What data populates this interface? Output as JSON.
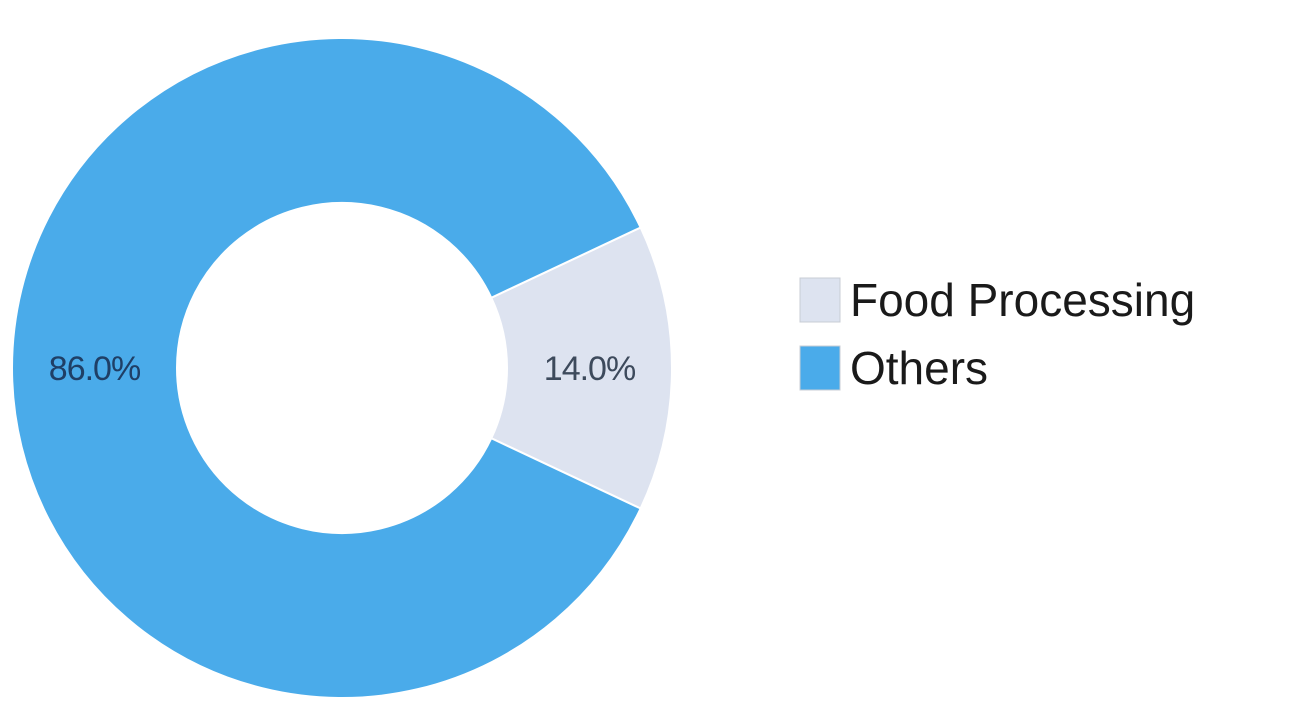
{
  "chart_data": {
    "type": "pie",
    "variant": "donut",
    "title": "",
    "slices": [
      {
        "name": "Food Processing",
        "value": 14.0,
        "label": "14.0%",
        "color": "#dde3f0",
        "label_color": "#3d4a5c"
      },
      {
        "name": "Others",
        "value": 86.0,
        "label": "86.0%",
        "color": "#4aabea",
        "label_color": "#1f3f66"
      }
    ],
    "legend": {
      "position": "right",
      "entries": [
        "Food Processing",
        "Others"
      ]
    }
  }
}
